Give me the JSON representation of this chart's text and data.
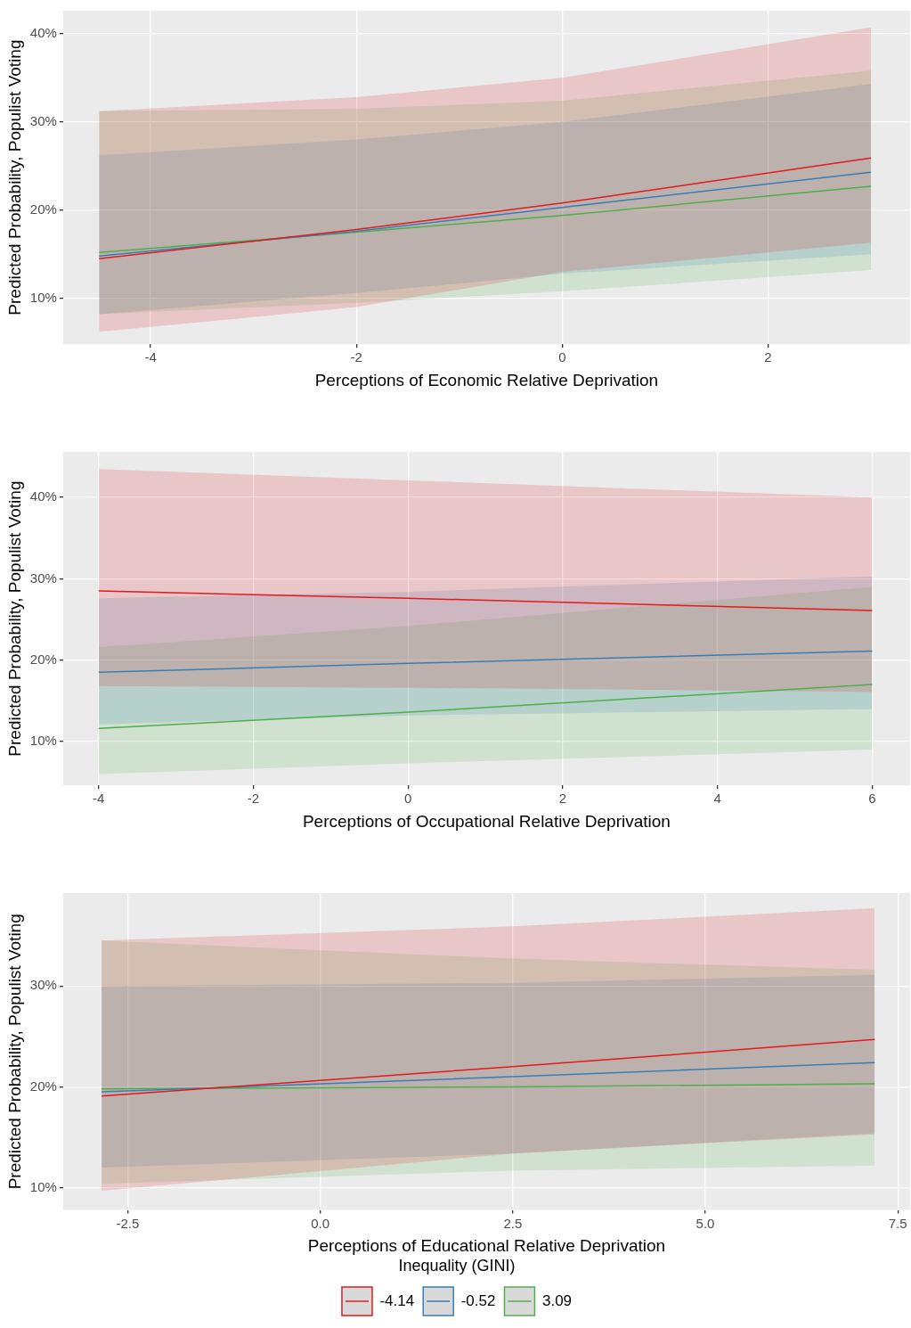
{
  "chart_data": [
    {
      "type": "line",
      "xlabel": "Perceptions of Economic Relative Deprivation",
      "ylabel": "Predicted Probability, Populist Voting",
      "xlim": [
        -4.85,
        3.38
      ],
      "xticks": [
        -4,
        -2,
        0,
        2
      ],
      "ylim": [
        4.8,
        42.6
      ],
      "yticks": [
        {
          "value": 10,
          "label": "10%"
        },
        {
          "value": 20,
          "label": "20%"
        },
        {
          "value": 30,
          "label": "30%"
        },
        {
          "value": 40,
          "label": "40%"
        }
      ],
      "grid": true,
      "legend": false,
      "series": [
        {
          "color": "#e41a1c",
          "x": [
            -4.5,
            -2,
            0,
            3
          ],
          "values": [
            14.5,
            17.8,
            20.8,
            25.9
          ],
          "lower": [
            6.2,
            9.0,
            13.0,
            16.3
          ],
          "upper": [
            31.2,
            32.8,
            35.0,
            40.7
          ]
        },
        {
          "color": "#377eb8",
          "x": [
            -4.5,
            -2,
            0,
            3
          ],
          "values": [
            14.8,
            17.6,
            20.3,
            24.3
          ],
          "lower": [
            8.2,
            10.6,
            12.8,
            15.0
          ],
          "upper": [
            26.2,
            28.0,
            30.0,
            34.3
          ]
        },
        {
          "color": "#4daf4a",
          "x": [
            -4.5,
            -2,
            0,
            3
          ],
          "values": [
            15.2,
            17.5,
            19.4,
            22.7
          ],
          "lower": [
            8.2,
            9.5,
            10.8,
            13.2
          ],
          "upper": [
            31.2,
            31.5,
            32.4,
            35.8
          ]
        }
      ]
    },
    {
      "type": "line",
      "xlabel": "Perceptions of Occupational Relative Deprivation",
      "ylabel": "Predicted Probability, Populist Voting",
      "xlim": [
        -4.46,
        6.49
      ],
      "xticks": [
        -4,
        -2,
        0,
        2,
        4,
        6
      ],
      "ylim": [
        4.6,
        45.6
      ],
      "yticks": [
        {
          "value": 10,
          "label": "10%"
        },
        {
          "value": 20,
          "label": "20%"
        },
        {
          "value": 30,
          "label": "30%"
        },
        {
          "value": 40,
          "label": "40%"
        }
      ],
      "grid": true,
      "legend": false,
      "series": [
        {
          "color": "#e41a1c",
          "x": [
            -4,
            0,
            6
          ],
          "values": [
            28.5,
            27.6,
            26.1
          ],
          "lower": [
            16.8,
            16.6,
            16.1
          ],
          "upper": [
            43.5,
            42.1,
            40.0
          ]
        },
        {
          "color": "#377eb8",
          "x": [
            -4,
            0,
            6
          ],
          "values": [
            18.5,
            19.6,
            21.1
          ],
          "lower": [
            12.1,
            13.2,
            14.0
          ],
          "upper": [
            27.6,
            28.4,
            30.3
          ]
        },
        {
          "color": "#4daf4a",
          "x": [
            -4,
            0,
            6
          ],
          "values": [
            11.6,
            13.6,
            17.0
          ],
          "lower": [
            6.0,
            7.3,
            9.0
          ],
          "upper": [
            21.6,
            24.2,
            29.0
          ]
        }
      ]
    },
    {
      "type": "line",
      "xlabel": "Perceptions of Educational Relative Deprivation",
      "ylabel": "Predicted Probability, Populist Voting",
      "xlim": [
        -3.34,
        7.66
      ],
      "xticks": [
        -2.5,
        {
          "value": 0,
          "label": "0.0"
        },
        2.5,
        {
          "value": 5,
          "label": "5.0"
        },
        7.5
      ],
      "ylim": [
        7.8,
        39.2
      ],
      "yticks": [
        {
          "value": 10,
          "label": "10%"
        },
        {
          "value": 20,
          "label": "20%"
        },
        {
          "value": 30,
          "label": "30%"
        }
      ],
      "grid": true,
      "legend": "bottom",
      "legend_title": "Inequality (GINI)",
      "series": [
        {
          "name": "-4.14",
          "color": "#e41a1c",
          "x": [
            -2.84,
            2.5,
            7.2
          ],
          "values": [
            19.1,
            22.0,
            24.7
          ],
          "lower": [
            9.7,
            13.4,
            15.3
          ],
          "upper": [
            34.5,
            35.9,
            37.7
          ]
        },
        {
          "name": "-0.52",
          "color": "#377eb8",
          "x": [
            -2.84,
            2.5,
            7.2
          ],
          "values": [
            19.5,
            21.0,
            22.4
          ],
          "lower": [
            12.0,
            13.4,
            15.4
          ],
          "upper": [
            30.0,
            30.3,
            31.1
          ]
        },
        {
          "name": "3.09",
          "color": "#4daf4a",
          "x": [
            -2.84,
            2.5,
            7.2
          ],
          "values": [
            19.8,
            20.0,
            20.3
          ],
          "lower": [
            10.4,
            11.7,
            12.2
          ],
          "upper": [
            34.5,
            32.7,
            31.6
          ]
        }
      ]
    }
  ]
}
